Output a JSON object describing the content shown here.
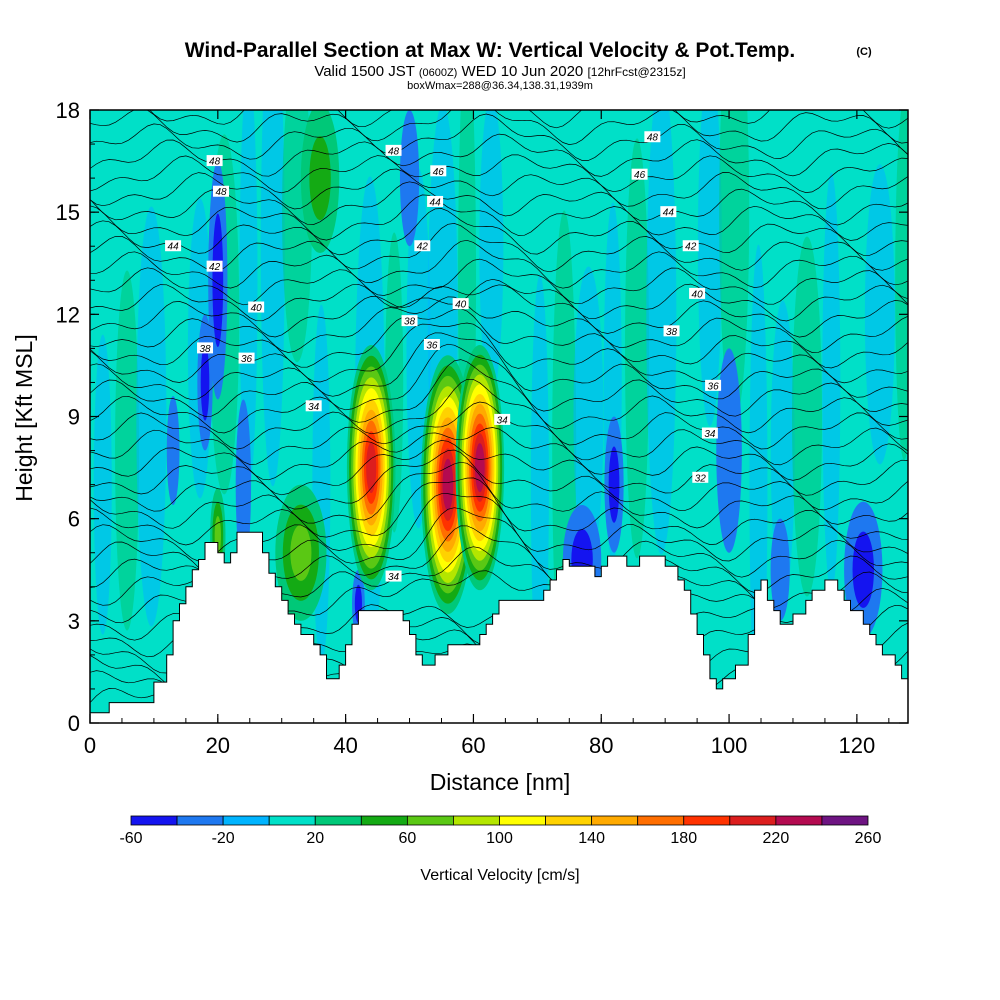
{
  "header": {
    "title": "Wind-Parallel Section at Max W: Vertical Velocity & Pot.Temp.",
    "copyright": "(C)",
    "valid_prefix": "Valid 1500 JST",
    "valid_utc": "(0600Z)",
    "valid_date": "WED 10 Jun 2020",
    "forecast": "[12hrFcst@2315z]",
    "box_info": "boxWmax=288@36.34,138.31,1939m"
  },
  "chart_data": {
    "type": "heatmap",
    "xlabel": "Distance [nm]",
    "ylabel": "Height [Kft MSL]",
    "xlim": [
      0,
      128
    ],
    "ylim": [
      0,
      18
    ],
    "xticks": [
      "0",
      "20",
      "40",
      "60",
      "80",
      "100",
      "120"
    ],
    "xtick_values": [
      0,
      20,
      40,
      60,
      80,
      100,
      120
    ],
    "yticks": [
      "0",
      "3",
      "6",
      "9",
      "12",
      "15",
      "18"
    ],
    "ytick_values": [
      0,
      3,
      6,
      9,
      12,
      15,
      18
    ],
    "background_color": "#00e0c8",
    "colorbar": {
      "label": "Vertical Velocity [cm/s]",
      "tick_labels": [
        "-60",
        "-20",
        "20",
        "60",
        "100",
        "140",
        "180",
        "220",
        "260"
      ],
      "bins": [
        {
          "min": -60,
          "max": -40,
          "color": "#1414f0"
        },
        {
          "min": -40,
          "max": -20,
          "color": "#1e78f0"
        },
        {
          "min": -20,
          "max": 0,
          "color": "#00b4ff"
        },
        {
          "min": 0,
          "max": 20,
          "color": "#00e0c8"
        },
        {
          "min": 20,
          "max": 40,
          "color": "#00c878"
        },
        {
          "min": 40,
          "max": 60,
          "color": "#14aa14"
        },
        {
          "min": 60,
          "max": 80,
          "color": "#5ac814"
        },
        {
          "min": 80,
          "max": 100,
          "color": "#b4e600"
        },
        {
          "min": 100,
          "max": 120,
          "color": "#ffff00"
        },
        {
          "min": 120,
          "max": 140,
          "color": "#ffd200"
        },
        {
          "min": 140,
          "max": 160,
          "color": "#ffaa00"
        },
        {
          "min": 160,
          "max": 180,
          "color": "#ff6e00"
        },
        {
          "min": 180,
          "max": 200,
          "color": "#ff3200"
        },
        {
          "min": 200,
          "max": 220,
          "color": "#dc1e1e"
        },
        {
          "min": 220,
          "max": 240,
          "color": "#b40a50"
        },
        {
          "min": 240,
          "max": 260,
          "color": "#6e1482"
        }
      ]
    },
    "velocity_cells": [
      {
        "x": 44,
        "y": 7.5,
        "rx": 3.8,
        "ry": 3.6,
        "peak": 210
      },
      {
        "x": 56,
        "y": 7.0,
        "rx": 4.2,
        "ry": 3.8,
        "peak": 230
      },
      {
        "x": 61,
        "y": 7.5,
        "rx": 3.8,
        "ry": 3.6,
        "peak": 230
      },
      {
        "x": 33,
        "y": 5.0,
        "rx": 4.0,
        "ry": 2.0,
        "peak": 70
      },
      {
        "x": 20,
        "y": 5.5,
        "rx": 1.2,
        "ry": 1.4,
        "peak": 70
      },
      {
        "x": 36,
        "y": 16,
        "rx": 3.0,
        "ry": 2.2,
        "peak": 40
      },
      {
        "x": 20,
        "y": 13,
        "rx": 1.5,
        "ry": 3.5,
        "peak": -60
      },
      {
        "x": 18,
        "y": 10,
        "rx": 1.2,
        "ry": 2.0,
        "peak": -40
      },
      {
        "x": 24,
        "y": 7,
        "rx": 1.2,
        "ry": 2.5,
        "peak": -30
      },
      {
        "x": 13,
        "y": 8,
        "rx": 1.0,
        "ry": 1.6,
        "peak": -30
      },
      {
        "x": 42,
        "y": 3.5,
        "rx": 1.0,
        "ry": 1.0,
        "peak": -50
      },
      {
        "x": 77,
        "y": 4.8,
        "rx": 3.0,
        "ry": 1.6,
        "peak": -60
      },
      {
        "x": 82,
        "y": 7.0,
        "rx": 1.5,
        "ry": 2.0,
        "peak": -40
      },
      {
        "x": 121,
        "y": 4.5,
        "rx": 3.0,
        "ry": 2.0,
        "peak": -60
      },
      {
        "x": 108,
        "y": 4.5,
        "rx": 1.5,
        "ry": 1.5,
        "peak": -30
      },
      {
        "x": 50,
        "y": 16,
        "rx": 1.5,
        "ry": 2.0,
        "peak": -30
      },
      {
        "x": 100,
        "y": 8,
        "rx": 2.0,
        "ry": 3.0,
        "peak": -20
      }
    ],
    "terrain": [
      [
        0,
        0.3
      ],
      [
        3,
        0.3
      ],
      [
        3,
        0.6
      ],
      [
        10,
        0.6
      ],
      [
        10,
        1.2
      ],
      [
        12,
        1.2
      ],
      [
        12,
        2
      ],
      [
        13,
        2
      ],
      [
        13,
        3
      ],
      [
        14,
        3
      ],
      [
        14,
        3.5
      ],
      [
        15,
        3.5
      ],
      [
        15,
        4
      ],
      [
        16,
        4
      ],
      [
        16,
        4.5
      ],
      [
        17,
        4.5
      ],
      [
        17,
        4.8
      ],
      [
        18,
        4.8
      ],
      [
        18,
        5.3
      ],
      [
        20,
        5.3
      ],
      [
        20,
        5
      ],
      [
        21,
        5
      ],
      [
        21,
        4.7
      ],
      [
        22,
        4.7
      ],
      [
        22,
        5
      ],
      [
        23,
        5
      ],
      [
        23,
        5.6
      ],
      [
        27,
        5.6
      ],
      [
        27,
        5
      ],
      [
        28,
        5
      ],
      [
        28,
        4.4
      ],
      [
        29,
        4.4
      ],
      [
        29,
        4
      ],
      [
        30,
        4
      ],
      [
        30,
        3.6
      ],
      [
        31,
        3.6
      ],
      [
        31,
        3.2
      ],
      [
        32,
        3.2
      ],
      [
        32,
        2.9
      ],
      [
        33,
        2.9
      ],
      [
        33,
        2.6
      ],
      [
        35,
        2.6
      ],
      [
        35,
        2.3
      ],
      [
        36,
        2.3
      ],
      [
        36,
        2
      ],
      [
        37,
        2
      ],
      [
        37,
        1.3
      ],
      [
        39,
        1.3
      ],
      [
        39,
        1.7
      ],
      [
        40,
        1.7
      ],
      [
        40,
        2.3
      ],
      [
        41,
        2.3
      ],
      [
        41,
        2.9
      ],
      [
        42,
        2.9
      ],
      [
        42,
        3.3
      ],
      [
        49,
        3.3
      ],
      [
        49,
        3
      ],
      [
        50,
        3
      ],
      [
        50,
        2.6
      ],
      [
        51,
        2.6
      ],
      [
        51,
        2
      ],
      [
        52,
        2
      ],
      [
        52,
        1.7
      ],
      [
        54,
        1.7
      ],
      [
        54,
        2
      ],
      [
        56,
        2
      ],
      [
        56,
        2.3
      ],
      [
        61,
        2.3
      ],
      [
        61,
        2.6
      ],
      [
        62,
        2.6
      ],
      [
        62,
        2.9
      ],
      [
        63,
        2.9
      ],
      [
        63,
        3.2
      ],
      [
        64,
        3.2
      ],
      [
        64,
        3.6
      ],
      [
        71,
        3.6
      ],
      [
        71,
        3.9
      ],
      [
        72,
        3.9
      ],
      [
        72,
        4.2
      ],
      [
        73,
        4.2
      ],
      [
        73,
        4.5
      ],
      [
        74,
        4.5
      ],
      [
        74,
        4.8
      ],
      [
        75,
        4.8
      ],
      [
        75,
        4.6
      ],
      [
        79,
        4.6
      ],
      [
        79,
        4.3
      ],
      [
        80,
        4.3
      ],
      [
        80,
        4.6
      ],
      [
        81,
        4.6
      ],
      [
        81,
        4.9
      ],
      [
        84,
        4.9
      ],
      [
        84,
        4.6
      ],
      [
        86,
        4.6
      ],
      [
        86,
        4.9
      ],
      [
        90,
        4.9
      ],
      [
        90,
        4.6
      ],
      [
        92,
        4.6
      ],
      [
        92,
        4.2
      ],
      [
        93,
        4.2
      ],
      [
        93,
        3.9
      ],
      [
        94,
        3.9
      ],
      [
        94,
        3.2
      ],
      [
        95,
        3.2
      ],
      [
        95,
        2.6
      ],
      [
        96,
        2.6
      ],
      [
        96,
        2
      ],
      [
        97,
        2
      ],
      [
        97,
        1.3
      ],
      [
        98,
        1.3
      ],
      [
        98,
        1
      ],
      [
        99,
        1
      ],
      [
        99,
        1.3
      ],
      [
        101,
        1.3
      ],
      [
        101,
        1.7
      ],
      [
        103,
        1.7
      ],
      [
        103,
        2.6
      ],
      [
        104,
        2.6
      ],
      [
        104,
        3.9
      ],
      [
        105,
        3.9
      ],
      [
        105,
        4.2
      ],
      [
        106,
        4.2
      ],
      [
        106,
        3.6
      ],
      [
        107,
        3.6
      ],
      [
        107,
        3.3
      ],
      [
        108,
        3.3
      ],
      [
        108,
        2.9
      ],
      [
        110,
        2.9
      ],
      [
        110,
        3.2
      ],
      [
        112,
        3.2
      ],
      [
        112,
        3.6
      ],
      [
        113,
        3.6
      ],
      [
        113,
        3.9
      ],
      [
        115,
        3.9
      ],
      [
        115,
        4.2
      ],
      [
        117,
        4.2
      ],
      [
        117,
        3.9
      ],
      [
        118,
        3.9
      ],
      [
        118,
        3.6
      ],
      [
        119,
        3.6
      ],
      [
        119,
        3.3
      ],
      [
        121,
        3.3
      ],
      [
        121,
        2.9
      ],
      [
        122,
        2.9
      ],
      [
        122,
        2.6
      ],
      [
        123,
        2.6
      ],
      [
        123,
        2.3
      ],
      [
        124,
        2.3
      ],
      [
        124,
        2
      ],
      [
        126,
        2
      ],
      [
        126,
        1.7
      ],
      [
        127,
        1.7
      ],
      [
        127,
        1.3
      ],
      [
        128,
        1.3
      ]
    ],
    "contour_labels": [
      {
        "text": "48",
        "x": 19.5,
        "y": 16.5
      },
      {
        "text": "48",
        "x": 20.5,
        "y": 15.6
      },
      {
        "text": "44",
        "x": 13,
        "y": 14.0
      },
      {
        "text": "42",
        "x": 19.5,
        "y": 13.4
      },
      {
        "text": "40",
        "x": 26,
        "y": 12.2
      },
      {
        "text": "38",
        "x": 18,
        "y": 11.0
      },
      {
        "text": "36",
        "x": 24.5,
        "y": 10.7
      },
      {
        "text": "34",
        "x": 35,
        "y": 9.3
      },
      {
        "text": "48",
        "x": 47.5,
        "y": 16.8
      },
      {
        "text": "46",
        "x": 54.5,
        "y": 16.2
      },
      {
        "text": "44",
        "x": 54,
        "y": 15.3
      },
      {
        "text": "42",
        "x": 52,
        "y": 14.0
      },
      {
        "text": "40",
        "x": 58,
        "y": 12.3
      },
      {
        "text": "38",
        "x": 50,
        "y": 11.8
      },
      {
        "text": "36",
        "x": 53.5,
        "y": 11.1
      },
      {
        "text": "34",
        "x": 64.5,
        "y": 8.9
      },
      {
        "text": "34",
        "x": 47.5,
        "y": 4.3
      },
      {
        "text": "48",
        "x": 88,
        "y": 17.2
      },
      {
        "text": "46",
        "x": 86,
        "y": 16.1
      },
      {
        "text": "44",
        "x": 90.5,
        "y": 15.0
      },
      {
        "text": "42",
        "x": 94,
        "y": 14.0
      },
      {
        "text": "40",
        "x": 95,
        "y": 12.6
      },
      {
        "text": "38",
        "x": 91,
        "y": 11.5
      },
      {
        "text": "36",
        "x": 97.5,
        "y": 9.9
      },
      {
        "text": "34",
        "x": 97,
        "y": 8.5
      },
      {
        "text": "32",
        "x": 95.5,
        "y": 7.2
      }
    ]
  }
}
